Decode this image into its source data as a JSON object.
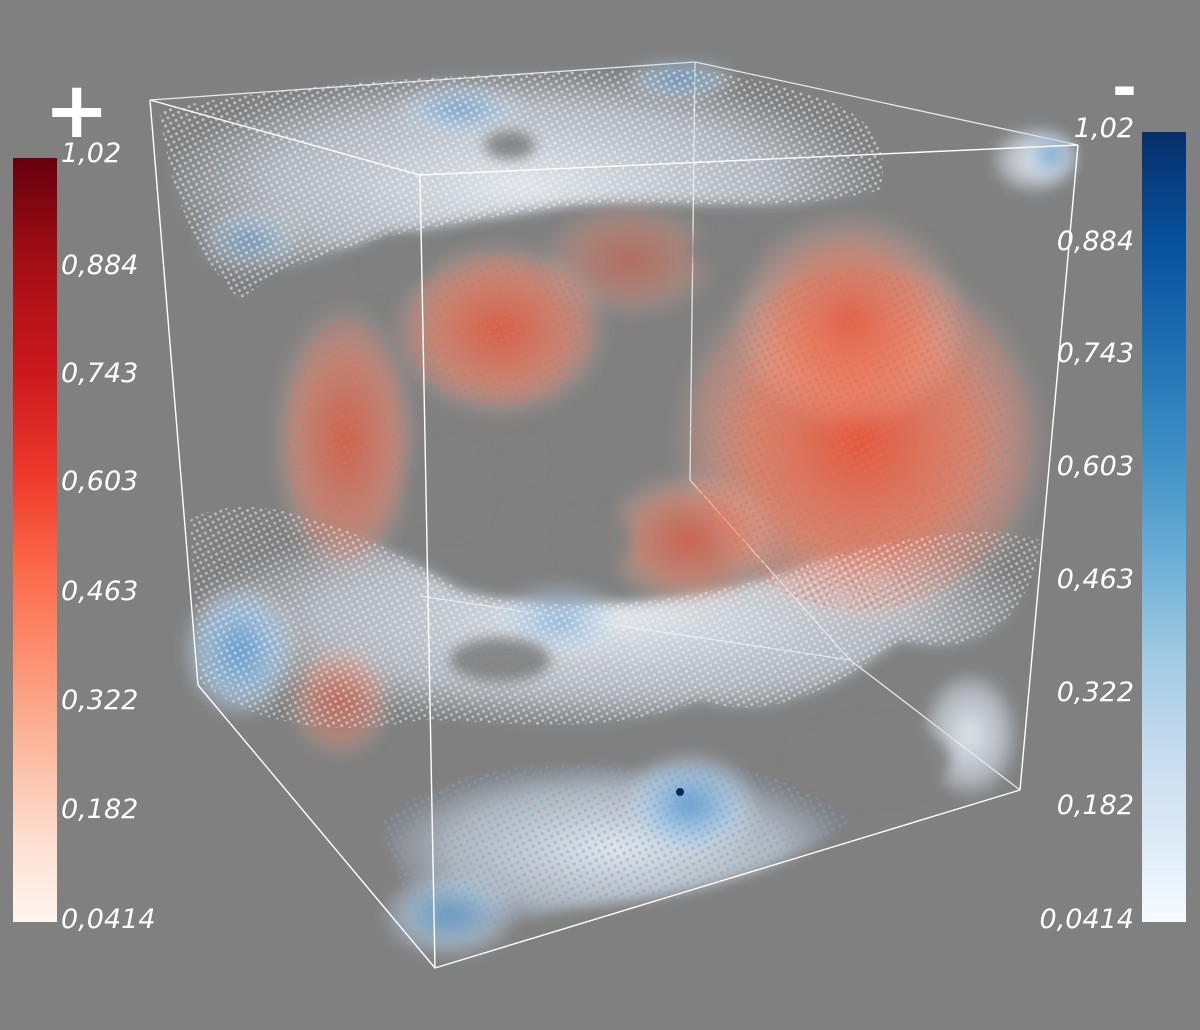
{
  "visualization": {
    "description_kind": "3D volume render of scalar field as colored point glyphs inside a wireframe cube",
    "background_color": "#808080",
    "positive_colorbar": {
      "title": "+",
      "ticks": [
        "1,02",
        "0,884",
        "0,743",
        "0,603",
        "0,463",
        "0,322",
        "0,182",
        "0,0414"
      ],
      "range": [
        0.0414,
        1.02
      ],
      "colormap": "Reds",
      "colors": [
        "#67000d",
        "#a50f15",
        "#cb181d",
        "#ef3b2c",
        "#fb6a4a",
        "#fc9272",
        "#fcbba1",
        "#fee0d2",
        "#fff5f0"
      ]
    },
    "negative_colorbar": {
      "title": "-",
      "ticks": [
        "1,02",
        "0,884",
        "0,743",
        "0,603",
        "0,463",
        "0,322",
        "0,182",
        "0,0414"
      ],
      "range": [
        0.0414,
        1.02
      ],
      "colormap": "Blues",
      "colors": [
        "#08306b",
        "#08519c",
        "#2171b5",
        "#4292c6",
        "#6baed6",
        "#9ecae1",
        "#c6dbef",
        "#deebf7",
        "#f7fbff"
      ]
    }
  }
}
